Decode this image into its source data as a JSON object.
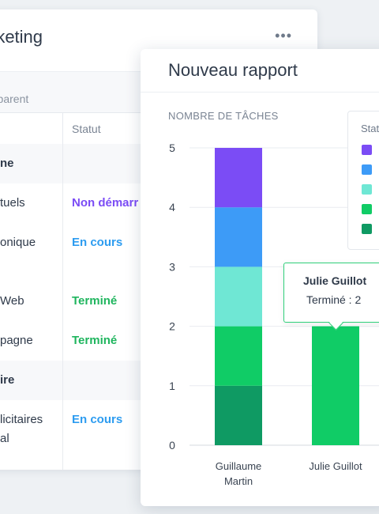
{
  "back": {
    "title": "rketing",
    "more": "•••",
    "filter": "r parent",
    "col_statut": "Statut",
    "rows": [
      {
        "label": "ne",
        "status": "",
        "group": true
      },
      {
        "label": "tuels",
        "status": "Non démarr",
        "color": "#7b4cf5"
      },
      {
        "label": "onique",
        "status": "En cours",
        "color": "#2d9cf0"
      },
      {
        "label": "Web",
        "status": "Terminé",
        "color": "#1fb55e"
      },
      {
        "label": "pagne",
        "status": "Terminé",
        "color": "#1fb55e"
      },
      {
        "label": "ire",
        "status": "",
        "group": true
      },
      {
        "label": "licitaires",
        "label2": "al",
        "status": "En cours",
        "color": "#2d9cf0"
      },
      {
        "label": "",
        "status": ""
      }
    ]
  },
  "report": {
    "title": "Nouveau rapport",
    "y_axis_title": "NOMBRE DE TÂCHES",
    "legend_title": "Statu",
    "tooltip": {
      "name": "Julie Guillot",
      "value": "Terminé : 2"
    }
  },
  "chart_data": {
    "type": "bar",
    "stacked": true,
    "categories": [
      "Guillaume Martin",
      "Julie Guillot"
    ],
    "category_lines": [
      [
        "Guillaume",
        "Martin"
      ],
      [
        "Julie Guillot"
      ]
    ],
    "ylim": [
      0,
      5
    ],
    "yticks": [
      "0",
      "1",
      "2",
      "3",
      "4",
      "5"
    ],
    "grid": true,
    "legend_position": "top-right",
    "series": [
      {
        "color": "#0f9a63",
        "values": [
          1,
          0
        ]
      },
      {
        "color": "#10cc66",
        "values": [
          1,
          2
        ]
      },
      {
        "color": "#6fe7d4",
        "values": [
          1,
          0
        ]
      },
      {
        "color": "#3d9bf7",
        "values": [
          1,
          0
        ]
      },
      {
        "color": "#7b4cf5",
        "values": [
          1,
          0
        ]
      }
    ]
  }
}
